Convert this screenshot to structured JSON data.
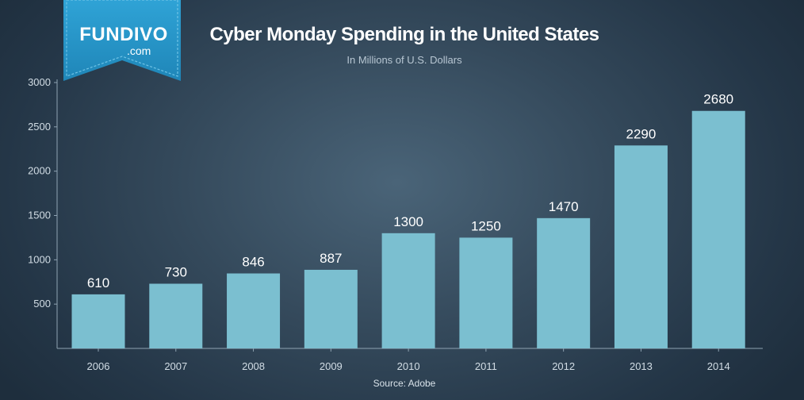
{
  "brand": {
    "name": "FUNDIVO",
    "domain": ".com"
  },
  "colors": {
    "bar": "#7bbfd0",
    "axis": "#8fa3b2",
    "ribbon": "#2b97c9",
    "text": "#ffffff",
    "tick_text": "#d2dde5"
  },
  "source": "Source: Adobe",
  "chart_data": {
    "type": "bar",
    "title": "Cyber Monday Spending in the United States",
    "subtitle": "In Millions of U.S. Dollars",
    "xlabel": "",
    "ylabel": "",
    "categories": [
      "2006",
      "2007",
      "2008",
      "2009",
      "2010",
      "2011",
      "2012",
      "2013",
      "2014"
    ],
    "values": [
      610,
      730,
      846,
      887,
      1300,
      1250,
      1470,
      2290,
      2680
    ],
    "value_labels": [
      "610",
      "730",
      "846",
      "887",
      "1300",
      "1250",
      "1470",
      "2290",
      "2680"
    ],
    "ylim": [
      0,
      3000
    ],
    "yticks": [
      500,
      1000,
      1500,
      2000,
      2500,
      3000
    ],
    "ytick_labels": [
      "500",
      "1000",
      "1500",
      "2000",
      "2500",
      "3000"
    ],
    "grid": false,
    "legend": "none"
  }
}
